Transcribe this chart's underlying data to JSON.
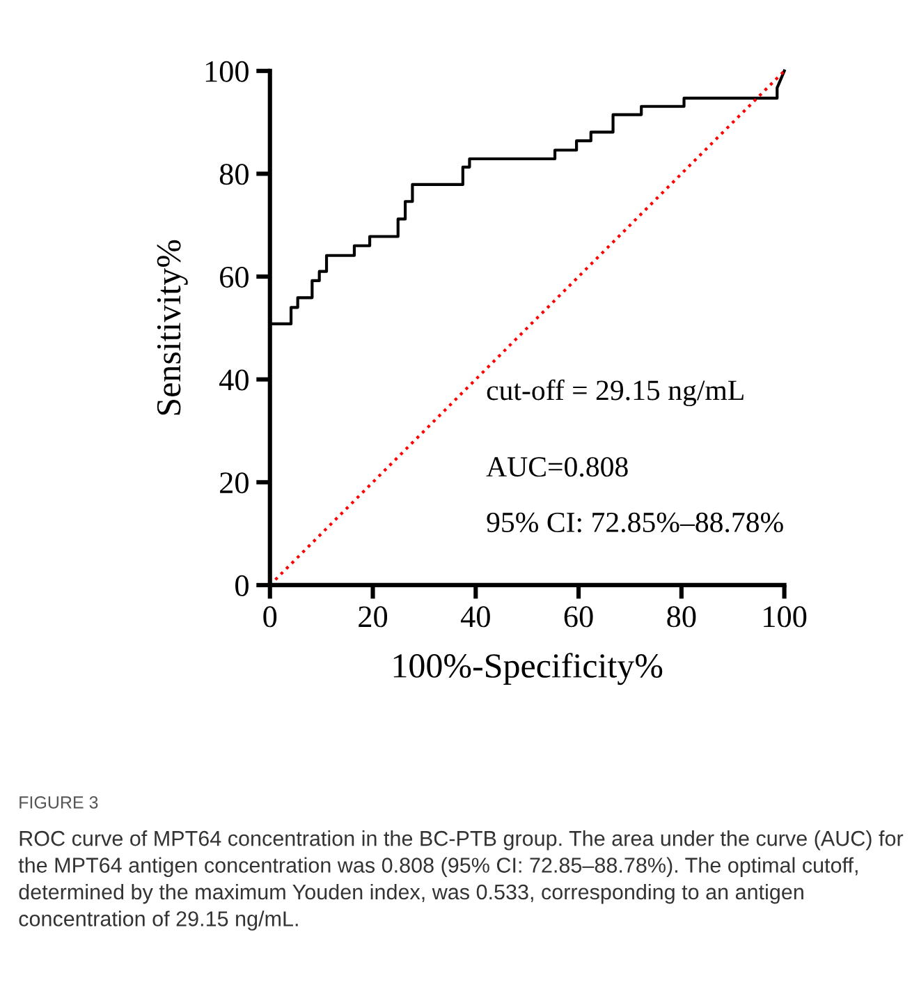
{
  "chart_data": {
    "type": "line",
    "xlabel": "100%-Specificity%",
    "ylabel": "Sensitivity%",
    "xlim": [
      0,
      100
    ],
    "ylim": [
      0,
      100
    ],
    "xticks": [
      0,
      20,
      40,
      60,
      80,
      100
    ],
    "yticks": [
      0,
      20,
      40,
      60,
      80,
      100
    ],
    "grid": false,
    "legend": false,
    "series": [
      {
        "color": "#000000",
        "line_style": "solid",
        "x": [
          0,
          4.1,
          4.1,
          5.4,
          5.4,
          8.2,
          8.2,
          9.6,
          9.6,
          11.0,
          11.0,
          16.4,
          16.4,
          19.4,
          19.4,
          24.9,
          24.9,
          26.3,
          26.3,
          27.7,
          27.7,
          37.5,
          37.5,
          38.8,
          38.8,
          55.4,
          55.4,
          59.6,
          59.6,
          62.4,
          62.4,
          66.7,
          66.7,
          72.2,
          72.2,
          80.5,
          80.5,
          98.6,
          98.6,
          100
        ],
        "values": [
          50.8,
          50.8,
          54.0,
          54.0,
          55.9,
          55.9,
          59.2,
          59.2,
          61.0,
          61.0,
          64.1,
          64.1,
          66.0,
          66.0,
          67.8,
          67.8,
          71.2,
          71.2,
          74.6,
          74.6,
          77.9,
          77.9,
          81.3,
          81.3,
          82.9,
          82.9,
          84.6,
          84.6,
          86.4,
          86.4,
          88.1,
          88.1,
          91.5,
          91.5,
          93.1,
          93.1,
          94.7,
          94.7,
          96.7,
          100
        ]
      },
      {
        "color": "#ff0000",
        "line_style": "dotted",
        "x": [
          0,
          100
        ],
        "values": [
          0,
          100
        ]
      }
    ],
    "annotations": [
      "cut-off = 29.15 ng/mL",
      "AUC=0.808",
      "95% CI: 72.85%–88.78%",
      "FIGURE 3",
      "ROC curve of MPT64 concentration in the BC-PTB group. The area under the curve (AUC) for the MPT64 antigen concentration was 0.808 (95% CI: 72.85–88.78%). The optimal cutoff, determined by the maximum Youden index, was 0.533, corresponding to an antigen concentration of 29.15 ng/mL."
    ]
  }
}
